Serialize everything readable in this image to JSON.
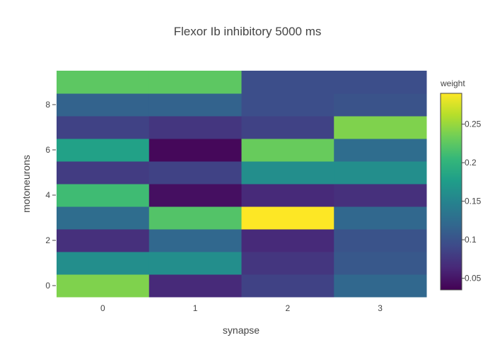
{
  "chart_data": {
    "type": "heatmap",
    "title": "Flexor Ib inhibitory 5000 ms",
    "xlabel": "synapse",
    "ylabel": "motoneurons",
    "x": [
      0,
      1,
      2,
      3
    ],
    "y": [
      0,
      1,
      2,
      3,
      4,
      5,
      6,
      7,
      8,
      9
    ],
    "xticks": [
      "0",
      "1",
      "2",
      "3"
    ],
    "yticks": [
      "0",
      "2",
      "4",
      "6",
      "8"
    ],
    "z": [
      [
        0.24,
        0.065,
        0.085,
        0.12
      ],
      [
        0.16,
        0.16,
        0.075,
        0.105
      ],
      [
        0.07,
        0.12,
        0.065,
        0.1
      ],
      [
        0.125,
        0.22,
        0.29,
        0.12
      ],
      [
        0.21,
        0.045,
        0.065,
        0.07
      ],
      [
        0.08,
        0.085,
        0.16,
        0.16
      ],
      [
        0.18,
        0.04,
        0.23,
        0.125
      ],
      [
        0.085,
        0.075,
        0.085,
        0.24
      ],
      [
        0.115,
        0.115,
        0.095,
        0.1
      ],
      [
        0.225,
        0.225,
        0.095,
        0.095
      ]
    ],
    "colorscale": "Viridis",
    "zmin": 0.035,
    "zmax": 0.29,
    "colorbar": {
      "title": "weight",
      "ticks": [
        "0.05",
        "0.1",
        "0.15",
        "0.2",
        "0.25"
      ]
    }
  }
}
